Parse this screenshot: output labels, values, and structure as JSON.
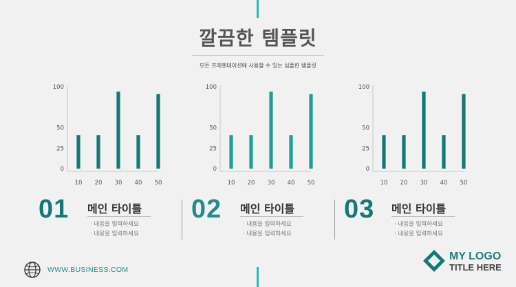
{
  "header": {
    "title": "깔끔한 템플릿",
    "subtitle": "모든 프레젠테이션에 사용할 수 있는 심플한 템플릿"
  },
  "colors": {
    "accent": "#25b9c2",
    "teal_dark": "#137977",
    "teal_mid": "#1f9e96"
  },
  "chart_data": [
    {
      "type": "bar",
      "categories": [
        "10",
        "20",
        "30",
        "40",
        "50"
      ],
      "values": [
        41,
        41,
        94,
        41,
        91
      ],
      "y_ticks": [
        "0",
        "25",
        "50",
        "100"
      ],
      "ylim": [
        0,
        100
      ],
      "color": "#137977"
    },
    {
      "type": "bar",
      "categories": [
        "10",
        "20",
        "30",
        "40",
        "50"
      ],
      "values": [
        41,
        41,
        94,
        41,
        91
      ],
      "y_ticks": [
        "0",
        "25",
        "50",
        "100"
      ],
      "ylim": [
        0,
        100
      ],
      "color": "#1f9e96"
    },
    {
      "type": "bar",
      "categories": [
        "10",
        "20",
        "30",
        "40",
        "50"
      ],
      "values": [
        41,
        41,
        94,
        41,
        91
      ],
      "y_ticks": [
        "0",
        "25",
        "50",
        "100"
      ],
      "ylim": [
        0,
        100
      ],
      "color": "#137977"
    }
  ],
  "sections": [
    {
      "number": "01",
      "number_color": "#137977",
      "title": "메인 타이틀",
      "bullets": [
        "· 내용을 입력하세요",
        "· 내용을 입력하세요"
      ]
    },
    {
      "number": "02",
      "number_color": "#1f8f8c",
      "title": "메인 타이틀",
      "bullets": [
        "· 내용을 입력하세요",
        "· 내용을 입력하세요"
      ]
    },
    {
      "number": "03",
      "number_color": "#137977",
      "title": "메인 타이틀",
      "bullets": [
        "· 내용을 입력하세요",
        "· 내용을 입력하세요"
      ]
    }
  ],
  "footer": {
    "url": "WWW.BUSINESS.COM",
    "globe_icon": "globe-icon",
    "logo_icon": "diamond-logo-icon",
    "logo_main": "MY LOGO",
    "logo_sub": "TITLE HERE"
  }
}
